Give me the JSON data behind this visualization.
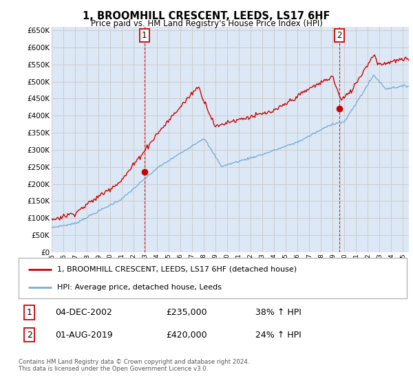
{
  "title": "1, BROOMHILL CRESCENT, LEEDS, LS17 6HF",
  "subtitle": "Price paid vs. HM Land Registry's House Price Index (HPI)",
  "legend_line1": "1, BROOMHILL CRESCENT, LEEDS, LS17 6HF (detached house)",
  "legend_line2": "HPI: Average price, detached house, Leeds",
  "annotation1_label": "1",
  "annotation1_date": "04-DEC-2002",
  "annotation1_price": "£235,000",
  "annotation1_hpi": "38% ↑ HPI",
  "annotation2_label": "2",
  "annotation2_date": "01-AUG-2019",
  "annotation2_price": "£420,000",
  "annotation2_hpi": "24% ↑ HPI",
  "footer": "Contains HM Land Registry data © Crown copyright and database right 2024.\nThis data is licensed under the Open Government Licence v3.0.",
  "red_color": "#cc0000",
  "blue_color": "#7aadd4",
  "vline_color": "#cc0000",
  "grid_color": "#cccccc",
  "background_color": "#ffffff",
  "plot_bg_color": "#dce8f5",
  "purchase1_year": 2002.92,
  "purchase1_value": 235000,
  "purchase2_year": 2019.58,
  "purchase2_value": 420000,
  "ylim_min": 0,
  "ylim_max": 660000,
  "xlim_min": 1995,
  "xlim_max": 2025.5
}
